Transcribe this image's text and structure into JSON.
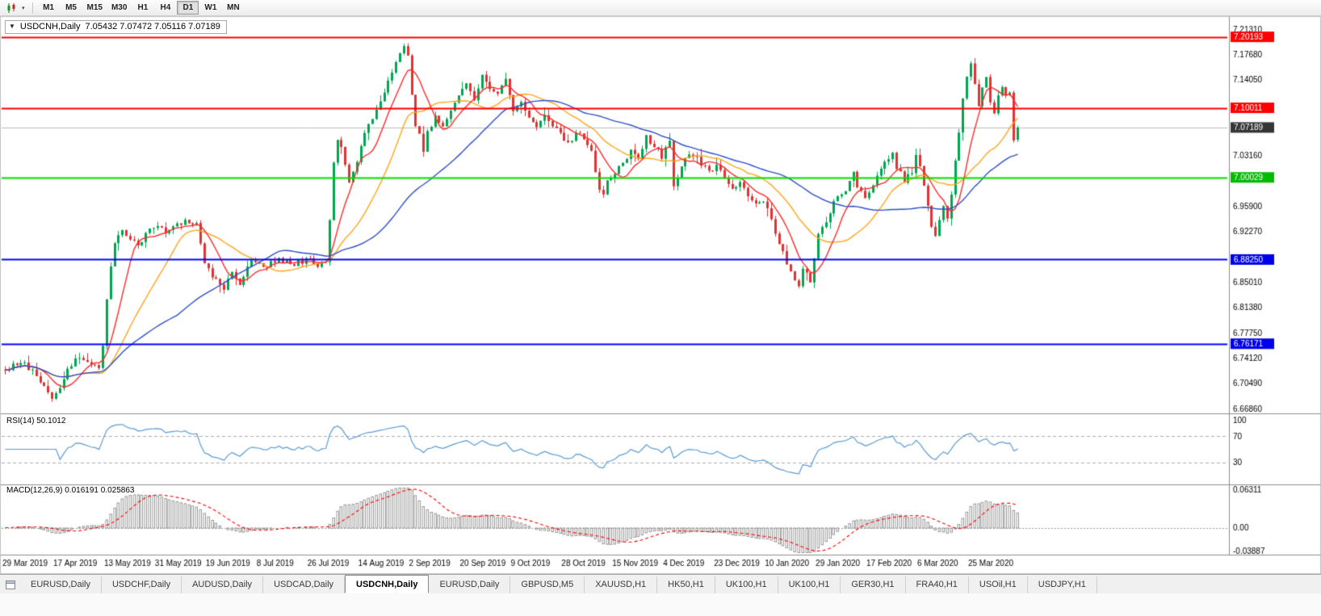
{
  "toolbar": {
    "caret": "▾",
    "timeframes": [
      {
        "label": "M1",
        "active": false
      },
      {
        "label": "M5",
        "active": false
      },
      {
        "label": "M15",
        "active": false
      },
      {
        "label": "M30",
        "active": false
      },
      {
        "label": "H1",
        "active": false
      },
      {
        "label": "H4",
        "active": false
      },
      {
        "label": "D1",
        "active": true
      },
      {
        "label": "W1",
        "active": false
      },
      {
        "label": "MN",
        "active": false
      }
    ]
  },
  "chart": {
    "marker": "▼",
    "symbol": "USDCNH,Daily",
    "ohlc_text": "7.05432 7.07472 7.05116 7.07189"
  },
  "chart_data": {
    "type": "candlestick",
    "symbol": "USDCNH",
    "timeframe": "Daily",
    "bar_count": 260,
    "last_candle": {
      "open": 7.05432,
      "high": 7.07472,
      "low": 7.05116,
      "close": 7.07189
    },
    "candle_colors": {
      "up": "#00A551",
      "down": "#DF3232"
    },
    "price_axis": {
      "min": 6.6653,
      "max": 7.2131,
      "labels": [
        {
          "text": "7.21310",
          "price": 7.2131
        },
        {
          "text": "7.17680",
          "price": 7.1768
        },
        {
          "text": "7.14050",
          "price": 7.1405
        },
        {
          "text": "7.03160",
          "price": 7.0316
        },
        {
          "text": "6.95900",
          "price": 6.959
        },
        {
          "text": "6.92270",
          "price": 6.9227
        },
        {
          "text": "6.85010",
          "price": 6.8501
        },
        {
          "text": "6.81380",
          "price": 6.8138
        },
        {
          "text": "6.77750",
          "price": 6.7775
        },
        {
          "text": "6.74120",
          "price": 6.7412
        },
        {
          "text": "6.70490",
          "price": 6.7049
        },
        {
          "text": "6.66860",
          "price": 6.6686
        }
      ]
    },
    "levels": [
      {
        "text": "7.20193",
        "price": 7.20193,
        "box": "#FF0000",
        "line": "#FF0000",
        "width": 2,
        "is_price": false
      },
      {
        "text": "7.10011",
        "price": 7.10011,
        "box": "#FF0000",
        "line": "#FF0000",
        "width": 2,
        "is_price": false
      },
      {
        "text": "7.07189",
        "price": 7.07189,
        "box": "#353535",
        "line": "#BBBBBB",
        "width": 1,
        "is_price": true
      },
      {
        "text": "7.00029",
        "price": 7.00029,
        "box": "#00BB00",
        "line": "#00DD00",
        "width": 2,
        "is_price": false
      },
      {
        "text": "6.88250",
        "price": 6.8825,
        "box": "#0000E8",
        "line": "#0000FF",
        "width": 2,
        "is_price": false
      },
      {
        "text": "6.76171",
        "price": 6.76171,
        "box": "#0000E8",
        "line": "#0000FF",
        "width": 2,
        "is_price": false
      }
    ],
    "x_axis": {
      "dates": [
        "29 Mar 2019",
        "17 Apr 2019",
        "13 May 2019",
        "31 May 2019",
        "19 Jun 2019",
        "8 Jul 2019",
        "26 Jul 2019",
        "14 Aug 2019",
        "2 Sep 2019",
        "20 Sep 2019",
        "9 Oct 2019",
        "28 Oct 2019",
        "15 Nov 2019",
        "4 Dec 2019",
        "23 Dec 2019",
        "10 Jan 2020",
        "29 Jan 2020",
        "17 Feb 2020",
        "6 Mar 2020",
        "25 Mar 2020"
      ],
      "bar_indices": [
        0,
        13,
        26,
        39,
        52,
        65,
        78,
        91,
        104,
        117,
        130,
        143,
        156,
        169,
        182,
        195,
        208,
        221,
        234,
        247
      ]
    },
    "close_path": [
      [
        0,
        6.724
      ],
      [
        4,
        6.737
      ],
      [
        8,
        6.718
      ],
      [
        12,
        6.684
      ],
      [
        14,
        6.701
      ],
      [
        18,
        6.744
      ],
      [
        22,
        6.731
      ],
      [
        24,
        6.727
      ],
      [
        25,
        6.762
      ],
      [
        26,
        6.822
      ],
      [
        27,
        6.872
      ],
      [
        28,
        6.906
      ],
      [
        30,
        6.921
      ],
      [
        34,
        6.905
      ],
      [
        38,
        6.931
      ],
      [
        42,
        6.922
      ],
      [
        46,
        6.939
      ],
      [
        49,
        6.931
      ],
      [
        51,
        6.88
      ],
      [
        53,
        6.856
      ],
      [
        56,
        6.842
      ],
      [
        58,
        6.863
      ],
      [
        60,
        6.849
      ],
      [
        63,
        6.881
      ],
      [
        66,
        6.873
      ],
      [
        70,
        6.881
      ],
      [
        74,
        6.877
      ],
      [
        78,
        6.883
      ],
      [
        80,
        6.871
      ],
      [
        82,
        6.881
      ],
      [
        83,
        6.936
      ],
      [
        84,
        7.021
      ],
      [
        85,
        7.056
      ],
      [
        86,
        7.046
      ],
      [
        88,
        6.996
      ],
      [
        90,
        7.026
      ],
      [
        92,
        7.061
      ],
      [
        94,
        7.086
      ],
      [
        96,
        7.106
      ],
      [
        98,
        7.141
      ],
      [
        100,
        7.166
      ],
      [
        102,
        7.186
      ],
      [
        103,
        7.176
      ],
      [
        104,
        7.121
      ],
      [
        105,
        7.076
      ],
      [
        106,
        7.061
      ],
      [
        107,
        7.041
      ],
      [
        108,
        7.066
      ],
      [
        110,
        7.086
      ],
      [
        112,
        7.071
      ],
      [
        114,
        7.096
      ],
      [
        116,
        7.121
      ],
      [
        118,
        7.136
      ],
      [
        120,
        7.111
      ],
      [
        122,
        7.146
      ],
      [
        124,
        7.131
      ],
      [
        126,
        7.121
      ],
      [
        128,
        7.141
      ],
      [
        130,
        7.096
      ],
      [
        132,
        7.111
      ],
      [
        134,
        7.086
      ],
      [
        136,
        7.071
      ],
      [
        138,
        7.089
      ],
      [
        140,
        7.076
      ],
      [
        142,
        7.063
      ],
      [
        144,
        7.049
      ],
      [
        146,
        7.063
      ],
      [
        148,
        7.056
      ],
      [
        150,
        7.036
      ],
      [
        151,
        7.006
      ],
      [
        152,
        6.986
      ],
      [
        153,
        6.979
      ],
      [
        154,
        6.993
      ],
      [
        156,
        7.009
      ],
      [
        158,
        7.023
      ],
      [
        160,
        7.036
      ],
      [
        162,
        7.029
      ],
      [
        164,
        7.061
      ],
      [
        166,
        7.043
      ],
      [
        168,
        7.031
      ],
      [
        170,
        7.053
      ],
      [
        171,
        6.986
      ],
      [
        172,
        6.999
      ],
      [
        174,
        7.026
      ],
      [
        176,
        7.033
      ],
      [
        178,
        7.021
      ],
      [
        180,
        7.009
      ],
      [
        182,
        7.016
      ],
      [
        184,
        6.999
      ],
      [
        186,
        6.986
      ],
      [
        188,
        6.993
      ],
      [
        190,
        6.976
      ],
      [
        192,
        6.963
      ],
      [
        194,
        6.969
      ],
      [
        196,
        6.941
      ],
      [
        198,
        6.906
      ],
      [
        200,
        6.876
      ],
      [
        202,
        6.856
      ],
      [
        203,
        6.846
      ],
      [
        204,
        6.871
      ],
      [
        205,
        6.863
      ],
      [
        206,
        6.849
      ],
      [
        207,
        6.881
      ],
      [
        208,
        6.916
      ],
      [
        210,
        6.936
      ],
      [
        212,
        6.963
      ],
      [
        214,
        6.976
      ],
      [
        216,
        6.993
      ],
      [
        217,
        7.006
      ],
      [
        218,
        6.986
      ],
      [
        220,
        6.969
      ],
      [
        222,
        6.991
      ],
      [
        224,
        7.016
      ],
      [
        226,
        7.029
      ],
      [
        227,
        7.039
      ],
      [
        228,
        7.016
      ],
      [
        230,
        6.996
      ],
      [
        232,
        7.006
      ],
      [
        233,
        7.031
      ],
      [
        234,
        7.013
      ],
      [
        235,
        6.991
      ],
      [
        236,
        6.961
      ],
      [
        237,
        6.931
      ],
      [
        238,
        6.913
      ],
      [
        239,
        6.939
      ],
      [
        240,
        6.956
      ],
      [
        241,
        6.943
      ],
      [
        242,
        6.976
      ],
      [
        243,
        7.021
      ],
      [
        244,
        7.066
      ],
      [
        245,
        7.111
      ],
      [
        246,
        7.141
      ],
      [
        247,
        7.161
      ],
      [
        248,
        7.131
      ],
      [
        249,
        7.106
      ],
      [
        250,
        7.126
      ],
      [
        251,
        7.141
      ],
      [
        252,
        7.111
      ],
      [
        253,
        7.089
      ],
      [
        254,
        7.116
      ],
      [
        255,
        7.131
      ],
      [
        256,
        7.119
      ],
      [
        257,
        7.121
      ],
      [
        258,
        7.0545
      ],
      [
        259,
        7.07189
      ]
    ],
    "moving_averages": [
      {
        "period": 8,
        "color": "#FF2A2A"
      },
      {
        "period": 20,
        "color": "#FFA519"
      },
      {
        "period": 45,
        "color": "#2E4FC9"
      }
    ],
    "rsi": {
      "label": "RSI(14) 50.1012",
      "period": 14,
      "value": 50.1012,
      "axis_labels": [
        "100",
        "70",
        "30"
      ],
      "level_values": [
        70,
        30
      ],
      "line_color": "#5B9BD5"
    },
    "macd": {
      "label": "MACD(12,26,9) 0.016191 0.025863",
      "fast": 12,
      "slow": 26,
      "signal": 9,
      "value": 0.016191,
      "signal_value": 0.025863,
      "axis_labels": [
        "0.06311",
        "0.00",
        "-0.03887"
      ],
      "axis_max": 0.06311,
      "axis_min": -0.03887,
      "histogram_color": "#989898",
      "signal_color": "#FF0000"
    }
  },
  "tabs": [
    {
      "label": "EURUSD,Daily",
      "active": false
    },
    {
      "label": "USDCHF,Daily",
      "active": false
    },
    {
      "label": "AUDUSD,Daily",
      "active": false
    },
    {
      "label": "USDCAD,Daily",
      "active": false
    },
    {
      "label": "USDCNH,Daily",
      "active": true
    },
    {
      "label": "EURUSD,Daily",
      "active": false
    },
    {
      "label": "GBPUSD,M5",
      "active": false
    },
    {
      "label": "XAUUSD,H1",
      "active": false
    },
    {
      "label": "HK50,H1",
      "active": false
    },
    {
      "label": "UK100,H1",
      "active": false
    },
    {
      "label": "UK100,H1",
      "active": false
    },
    {
      "label": "GER30,H1",
      "active": false
    },
    {
      "label": "FRA40,H1",
      "active": false
    },
    {
      "label": "USOil,H1",
      "active": false
    },
    {
      "label": "USDJPY,H1",
      "active": false
    }
  ]
}
